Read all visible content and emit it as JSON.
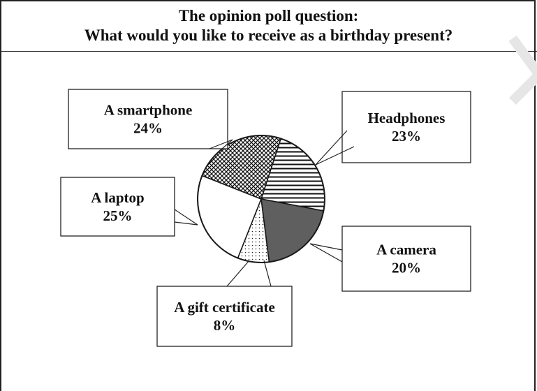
{
  "chart_data": {
    "type": "pie",
    "title": "The opinion poll question:",
    "subtitle": "What would you like to receive as a birthday present?",
    "slices": [
      {
        "label": "Headphones",
        "value": 23,
        "value_label": "23%",
        "pattern": "horizontal-lines"
      },
      {
        "label": "A camera",
        "value": 20,
        "value_label": "20%",
        "pattern": "solid-gray"
      },
      {
        "label": "A gift certificate",
        "value": 8,
        "value_label": "8%",
        "pattern": "dots"
      },
      {
        "label": "A laptop",
        "value": 25,
        "value_label": "25%",
        "pattern": "white"
      },
      {
        "label": "A smartphone",
        "value": 24,
        "value_label": "24%",
        "pattern": "crosshatch"
      }
    ],
    "legend": "callout-boxes",
    "colors": {
      "camera": "#5f5f5f",
      "stroke": "#1a1a1a",
      "background": "#ffffff"
    }
  }
}
